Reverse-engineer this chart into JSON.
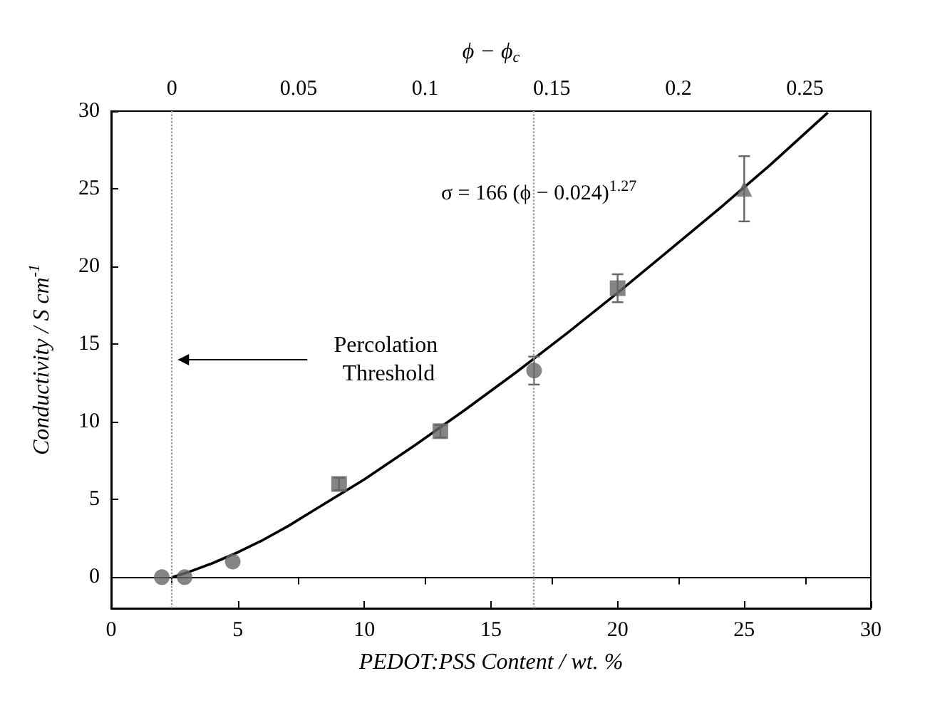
{
  "chart_data": {
    "type": "scatter",
    "xlabel": "PEDOT:PSS Content / wt. %",
    "ylabel": "Conductivity / S cm$^{-1}$",
    "x2label": "ϕ − ϕ$_{c}$",
    "xlim": [
      0,
      30
    ],
    "xticks": [
      0,
      5,
      10,
      15,
      20,
      25,
      30
    ],
    "ylim": [
      -2,
      30
    ],
    "yticks": [
      0,
      5,
      10,
      15,
      20,
      25,
      30
    ],
    "x2lim": [
      -0.024,
      0.276
    ],
    "x2ticks": [
      0,
      0.05,
      0.1,
      0.15,
      0.2,
      0.25
    ],
    "grid": false,
    "series": [
      {
        "marker": "circle",
        "color": "#666666",
        "x": [
          2,
          2.9,
          4.8,
          16.7
        ],
        "values": [
          0,
          0,
          1.0,
          13.3
        ],
        "errors": [
          null,
          null,
          null,
          0.9
        ]
      },
      {
        "marker": "square",
        "color": "#666666",
        "x": [
          9,
          13,
          20
        ],
        "values": [
          6.0,
          9.4,
          18.6
        ],
        "errors": [
          0.4,
          0.4,
          0.9
        ]
      },
      {
        "marker": "triangle",
        "color": "#666666",
        "x": [
          25
        ],
        "values": [
          25.0
        ],
        "errors": [
          2.1
        ]
      },
      {
        "type": "line",
        "marker": "none",
        "line_style": "solid",
        "color": "#000000",
        "x": [
          2.4,
          3,
          4,
          5,
          6,
          7,
          8,
          10,
          12,
          14,
          16,
          18,
          20,
          22,
          24,
          26,
          28.3
        ],
        "values": [
          0,
          0.3,
          0.9,
          1.6,
          2.4,
          3.3,
          4.3,
          6.3,
          8.5,
          10.8,
          13.2,
          15.7,
          18.3,
          21.0,
          23.7,
          26.5,
          29.9
        ]
      }
    ],
    "ref_lines": [
      {
        "axis": "x",
        "value": 2.4,
        "label": "Percolation Threshold",
        "color": "#999999",
        "line_style": "dotted"
      },
      {
        "axis": "x",
        "value": 16.7,
        "color": "#999999",
        "line_style": "dotted"
      }
    ],
    "annotations": [
      "σ = 166 (ϕ − 0.024)$^{1.27}$"
    ]
  }
}
